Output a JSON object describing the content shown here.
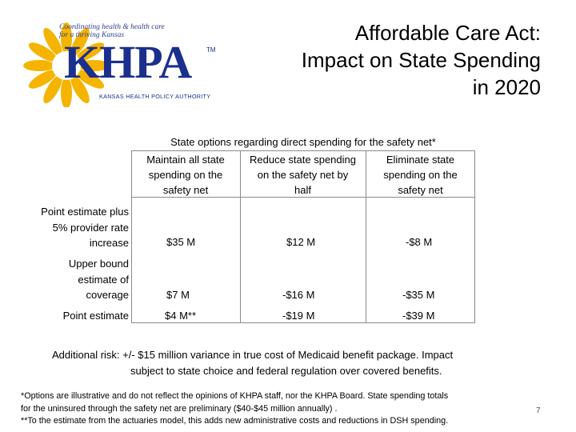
{
  "logo": {
    "tagline_line1": "Coordinating health & health care",
    "tagline_line2": "for a thriving Kansas",
    "name": "KHPA",
    "trademark": "TM",
    "authority": "KANSAS HEALTH POLICY AUTHORITY",
    "sun_color": "#f4b400",
    "text_color": "#1b2f8c"
  },
  "title": {
    "line1": "Affordable Care Act:",
    "line2": "Impact on State Spending",
    "line3": "in 2020"
  },
  "table": {
    "header": "State options regarding direct spending for the safety net*",
    "columns": [
      {
        "l1": "Maintain all state",
        "l2": "spending on the",
        "l3": "safety net"
      },
      {
        "l1": "Reduce state spending",
        "l2": "on the safety net by",
        "l3": "half"
      },
      {
        "l1": "Eliminate state",
        "l2": "spending on the",
        "l3": "safety net"
      }
    ],
    "rows": [
      {
        "label_l1": "Point estimate plus",
        "label_l2": "5% provider rate",
        "label_l3": "increase",
        "values": [
          "$35 M",
          "$12 M",
          "-$8 M"
        ]
      },
      {
        "label_l1": "Upper bound",
        "label_l2": "estimate of",
        "label_l3": "coverage",
        "values": [
          "$7 M",
          "-$16 M",
          "-$35 M"
        ]
      },
      {
        "label_l1": "Point estimate",
        "values": [
          "$4 M**",
          "-$19 M",
          "-$39 M"
        ]
      }
    ]
  },
  "risk": {
    "line1": "Additional risk: +/- $15 million variance in true cost of Medicaid benefit package.  Impact",
    "line2": "subject to state choice and federal regulation over covered benefits."
  },
  "footnotes": {
    "line1": "*Options are illustrative and do not reflect the opinions of KHPA staff, nor the KHPA Board. State spending totals",
    "line2": "for the uninsured through the safety net are preliminary ($40-$45 million annually) .",
    "line3": "**To the estimate from the actuaries model, this adds new administrative costs and reductions in DSH spending."
  },
  "page_number": "7"
}
